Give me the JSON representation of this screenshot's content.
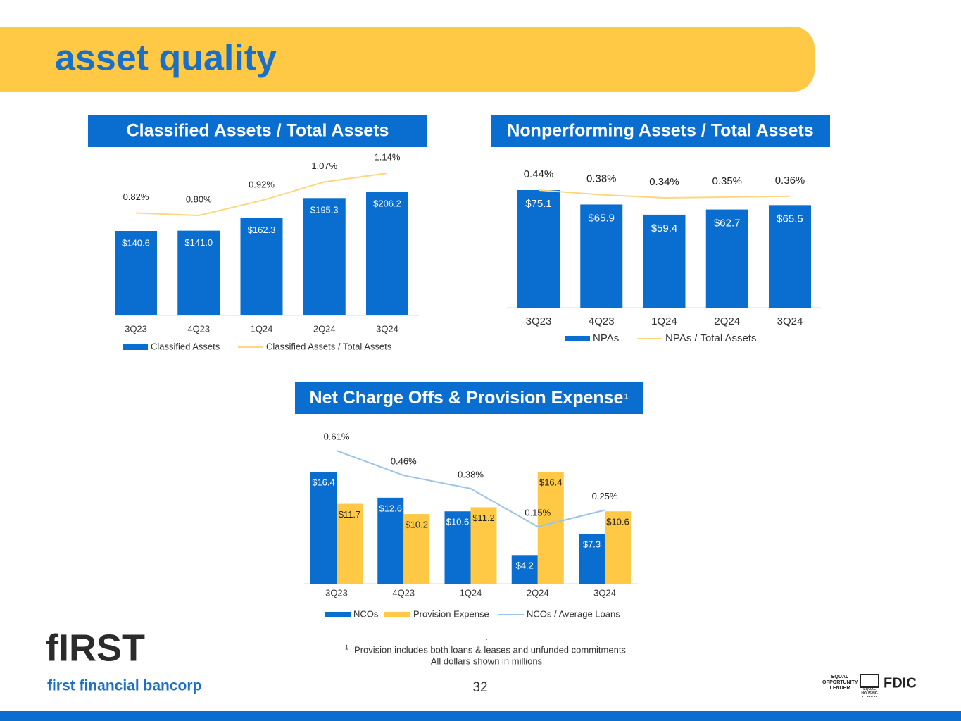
{
  "title": "asset quality",
  "chart_data": [
    {
      "type": "bar",
      "title": "Classified Assets / Total Assets",
      "categories": [
        "3Q23",
        "4Q23",
        "1Q24",
        "2Q24",
        "3Q24"
      ],
      "series": [
        {
          "name": "Classified Assets",
          "color": "#0a6ed1",
          "values": [
            140.6,
            141.0,
            162.3,
            195.3,
            206.2
          ],
          "value_labels": [
            "$140.6",
            "$141.0",
            "$162.3",
            "$195.3",
            "$206.2"
          ]
        },
        {
          "name": "Classified Assets / Total Assets",
          "type": "line",
          "axis": "y2",
          "color": "#fdd77f",
          "values": [
            0.82,
            0.8,
            0.92,
            1.07,
            1.14
          ],
          "value_labels": [
            "0.82%",
            "0.80%",
            "0.92%",
            "1.07%",
            "1.14%"
          ]
        }
      ]
    },
    {
      "type": "bar",
      "title": "Nonperforming Assets / Total Assets",
      "categories": [
        "3Q23",
        "4Q23",
        "1Q24",
        "2Q24",
        "3Q24"
      ],
      "series": [
        {
          "name": "NPAs",
          "color": "#0a6ed1",
          "values": [
            75.1,
            65.9,
            59.4,
            62.7,
            65.5
          ],
          "value_labels": [
            "$75.1",
            "$65.9",
            "$59.4",
            "$62.7",
            "$65.5"
          ]
        },
        {
          "name": "NPAs / Total Assets",
          "type": "line",
          "axis": "y2",
          "color": "#fdd77f",
          "values": [
            0.44,
            0.38,
            0.34,
            0.35,
            0.36
          ],
          "value_labels": [
            "0.44%",
            "0.38%",
            "0.34%",
            "0.35%",
            "0.36%"
          ]
        }
      ]
    },
    {
      "type": "bar",
      "title": "Net Charge Offs & Provision Expense",
      "title_marker": "1",
      "categories": [
        "3Q23",
        "4Q23",
        "1Q24",
        "2Q24",
        "3Q24"
      ],
      "series": [
        {
          "name": "NCOs",
          "color": "#0a6ed1",
          "values": [
            16.4,
            12.6,
            10.6,
            4.2,
            7.3
          ],
          "value_labels": [
            "$16.4",
            "$12.6",
            "$10.6",
            "$4.2",
            "$7.3"
          ]
        },
        {
          "name": "Provision Expense",
          "color": "#ffc845",
          "values": [
            11.7,
            10.2,
            11.2,
            16.4,
            10.6
          ],
          "value_labels": [
            "$11.7",
            "$10.2",
            "$11.2",
            "$16.4",
            "$10.6"
          ]
        },
        {
          "name": "NCOs / Average Loans",
          "type": "line",
          "axis": "y2",
          "color": "#9dc3e6",
          "values": [
            0.61,
            0.46,
            0.38,
            0.15,
            0.25
          ],
          "value_labels": [
            "0.61%",
            "0.46%",
            "0.38%",
            "0.15%",
            "0.25%"
          ]
        }
      ]
    }
  ],
  "footnote": {
    "dot": ".",
    "marker": "1",
    "text": "Provision includes both loans & leases and unfunded commitments",
    "note": "All dollars shown in millions"
  },
  "page_number": "32",
  "logo": {
    "mark": "fIRST",
    "name": "first financial bancorp"
  },
  "badges": [
    "EQUAL OPPORTUNITY LENDER",
    "EQUAL HOUSING LENDER",
    "FDIC"
  ]
}
